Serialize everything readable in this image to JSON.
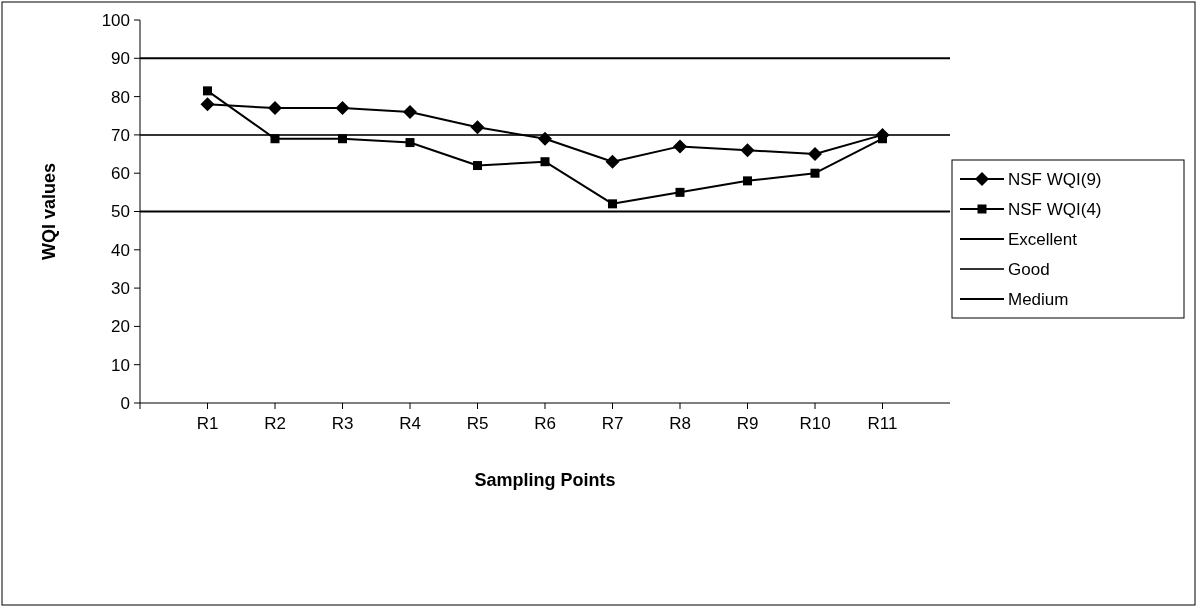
{
  "chart_data": {
    "type": "line",
    "xlabel": "Sampling Points",
    "ylabel": "WQI values",
    "categories": [
      "R1",
      "R2",
      "R3",
      "R4",
      "R5",
      "R6",
      "R7",
      "R8",
      "R9",
      "R10",
      "R11"
    ],
    "ylim": [
      0,
      100
    ],
    "yticks": [
      0,
      10,
      20,
      30,
      40,
      50,
      60,
      70,
      80,
      90,
      100
    ],
    "grid": false,
    "legend": "right",
    "series": [
      {
        "name": "NSF WQI(9)",
        "color": "#000000",
        "marker": "diamond",
        "values": [
          78,
          77,
          77,
          76,
          72,
          69,
          63,
          67,
          66,
          65,
          70
        ]
      },
      {
        "name": "NSF WQI(4)",
        "color": "#000000",
        "marker": "square",
        "values": [
          81.5,
          69,
          69,
          68,
          62,
          63,
          52,
          55,
          58,
          60,
          69
        ]
      }
    ],
    "ref_lines": [
      {
        "axis": "y",
        "value": 90,
        "label": "Excellent",
        "color": "#000000"
      },
      {
        "axis": "y",
        "value": 70,
        "label": "Good",
        "color": "#333333"
      },
      {
        "axis": "y",
        "value": 50,
        "label": "Medium",
        "color": "#000000"
      }
    ]
  }
}
